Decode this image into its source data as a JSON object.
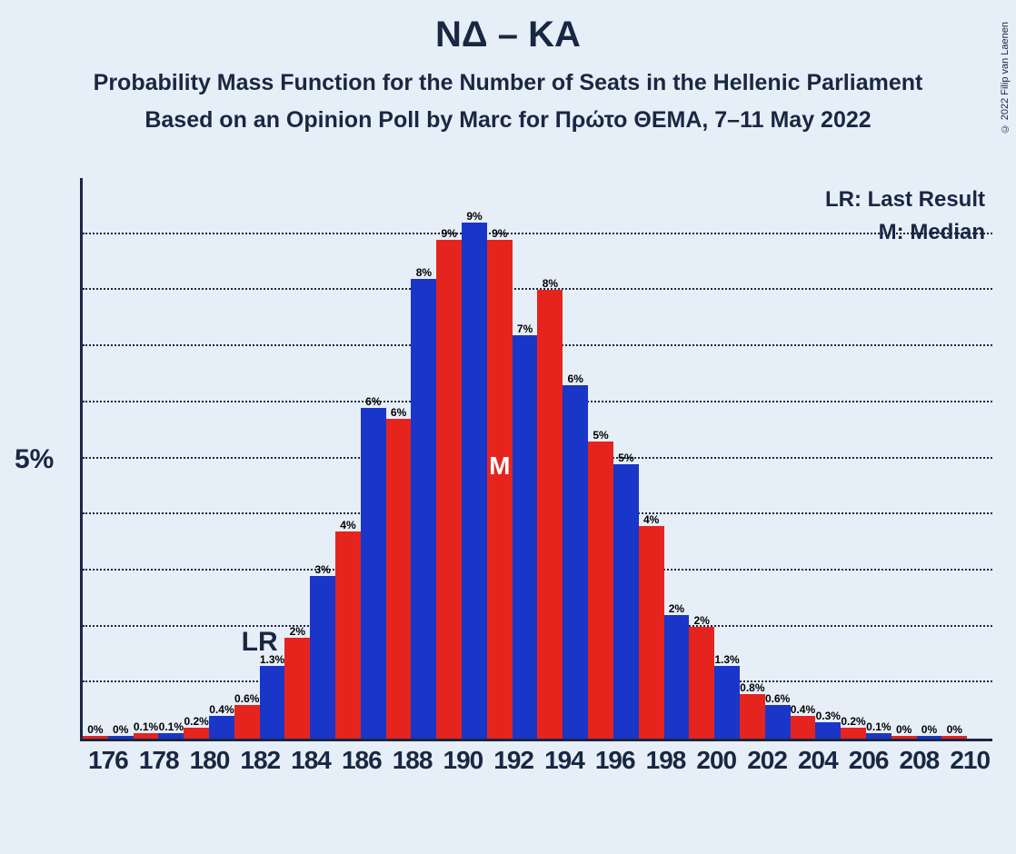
{
  "title": "ΝΔ – ΚΑ",
  "subtitle1": "Probability Mass Function for the Number of Seats in the Hellenic Parliament",
  "subtitle2": "Based on an Opinion Poll by Marc for Πρώτο ΘΕΜΑ, 7–11 May 2022",
  "copyright": "© 2022 Filip van Laenen",
  "chart": {
    "type": "bar",
    "background_color": "#e6eef8",
    "text_color": "#1a2742",
    "bar_color_a": "#e6241e",
    "bar_color_b": "#1936c9",
    "axis_color": "#1a2742",
    "grid_color": "#1a2742",
    "y_label": "5%",
    "y_max_pct": 10,
    "legend_lr": "LR: Last Result",
    "legend_m": "M: Median",
    "lr_text": "LR",
    "m_text": "M",
    "m_text_color": "#ffffff",
    "lr_pair_index": 3,
    "median_bar_index": 16,
    "grid_levels": [
      1,
      2,
      3,
      4,
      5,
      6,
      7,
      8,
      9
    ],
    "title_fontsize": 40,
    "subtitle_fontsize": 25,
    "xtick_fontsize": 28,
    "ytick_fontsize": 30,
    "x_labels": [
      "176",
      "178",
      "180",
      "182",
      "184",
      "186",
      "188",
      "190",
      "192",
      "194",
      "196",
      "198",
      "200",
      "202",
      "204",
      "206",
      "208",
      "210"
    ],
    "bars": [
      {
        "label": "0%",
        "v": 0.05,
        "c": "a"
      },
      {
        "label": "0%",
        "v": 0.05,
        "c": "b"
      },
      {
        "label": "0.1%",
        "v": 0.1,
        "c": "a"
      },
      {
        "label": "0.1%",
        "v": 0.1,
        "c": "b"
      },
      {
        "label": "0.2%",
        "v": 0.2,
        "c": "a"
      },
      {
        "label": "0.4%",
        "v": 0.4,
        "c": "b"
      },
      {
        "label": "0.6%",
        "v": 0.6,
        "c": "a"
      },
      {
        "label": "1.3%",
        "v": 1.3,
        "c": "b"
      },
      {
        "label": "2%",
        "v": 1.8,
        "c": "a"
      },
      {
        "label": "3%",
        "v": 2.9,
        "c": "b"
      },
      {
        "label": "4%",
        "v": 3.7,
        "c": "a"
      },
      {
        "label": "6%",
        "v": 5.9,
        "c": "b"
      },
      {
        "label": "6%",
        "v": 5.7,
        "c": "a"
      },
      {
        "label": "8%",
        "v": 8.2,
        "c": "b"
      },
      {
        "label": "9%",
        "v": 8.9,
        "c": "a"
      },
      {
        "label": "9%",
        "v": 9.2,
        "c": "b"
      },
      {
        "label": "9%",
        "v": 8.9,
        "c": "a"
      },
      {
        "label": "7%",
        "v": 7.2,
        "c": "b"
      },
      {
        "label": "8%",
        "v": 8.0,
        "c": "a"
      },
      {
        "label": "6%",
        "v": 6.3,
        "c": "b"
      },
      {
        "label": "5%",
        "v": 5.3,
        "c": "a"
      },
      {
        "label": "5%",
        "v": 4.9,
        "c": "b"
      },
      {
        "label": "4%",
        "v": 3.8,
        "c": "a"
      },
      {
        "label": "2%",
        "v": 2.2,
        "c": "b"
      },
      {
        "label": "2%",
        "v": 2.0,
        "c": "a"
      },
      {
        "label": "1.3%",
        "v": 1.3,
        "c": "b"
      },
      {
        "label": "0.8%",
        "v": 0.8,
        "c": "a"
      },
      {
        "label": "0.6%",
        "v": 0.6,
        "c": "b"
      },
      {
        "label": "0.4%",
        "v": 0.4,
        "c": "a"
      },
      {
        "label": "0.3%",
        "v": 0.3,
        "c": "b"
      },
      {
        "label": "0.2%",
        "v": 0.2,
        "c": "a"
      },
      {
        "label": "0.1%",
        "v": 0.1,
        "c": "b"
      },
      {
        "label": "0%",
        "v": 0.05,
        "c": "a"
      },
      {
        "label": "0%",
        "v": 0.05,
        "c": "b"
      },
      {
        "label": "0%",
        "v": 0.05,
        "c": "a"
      }
    ]
  }
}
